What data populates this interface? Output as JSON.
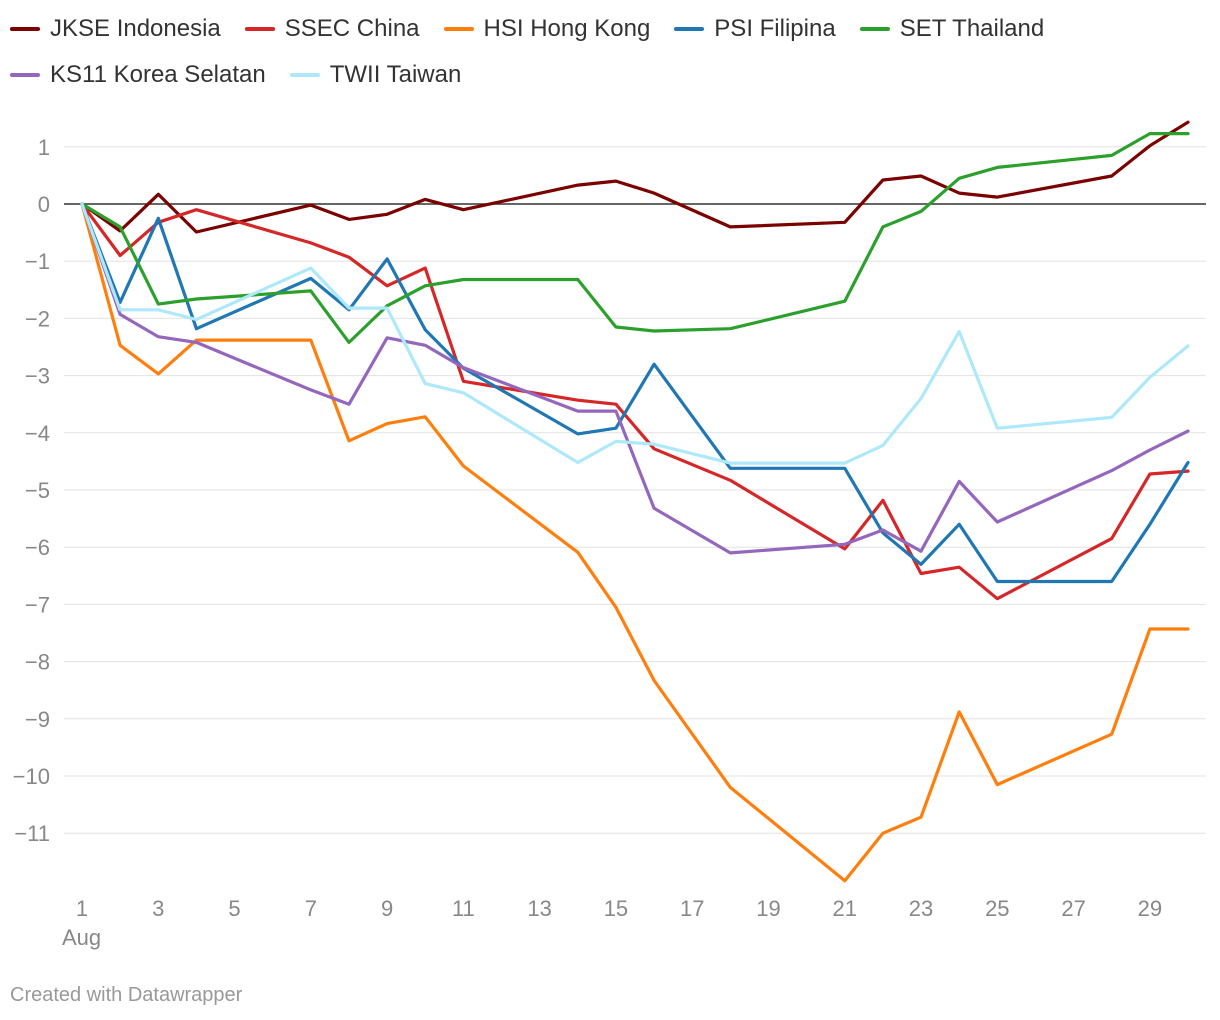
{
  "chart_data": {
    "type": "line",
    "title": "",
    "xlabel": "",
    "ylabel": "",
    "x": [
      1,
      2,
      3,
      4,
      7,
      8,
      9,
      10,
      11,
      14,
      15,
      16,
      18,
      21,
      22,
      23,
      24,
      25,
      28,
      29,
      30
    ],
    "xlim": [
      1,
      30
    ],
    "ylim": [
      -12,
      1.5
    ],
    "x_ticks": [
      {
        "value": 1,
        "label": "1",
        "sublabel": "Aug"
      },
      {
        "value": 3,
        "label": "3"
      },
      {
        "value": 5,
        "label": "5"
      },
      {
        "value": 7,
        "label": "7"
      },
      {
        "value": 9,
        "label": "9"
      },
      {
        "value": 11,
        "label": "11"
      },
      {
        "value": 13,
        "label": "13"
      },
      {
        "value": 15,
        "label": "15"
      },
      {
        "value": 17,
        "label": "17"
      },
      {
        "value": 19,
        "label": "19"
      },
      {
        "value": 21,
        "label": "21"
      },
      {
        "value": 23,
        "label": "23"
      },
      {
        "value": 25,
        "label": "25"
      },
      {
        "value": 27,
        "label": "27"
      },
      {
        "value": 29,
        "label": "29"
      }
    ],
    "y_ticks": [
      {
        "value": 1,
        "label": "1"
      },
      {
        "value": 0,
        "label": "0"
      },
      {
        "value": -1,
        "label": "−1"
      },
      {
        "value": -2,
        "label": "−2"
      },
      {
        "value": -3,
        "label": "−3"
      },
      {
        "value": -4,
        "label": "−4"
      },
      {
        "value": -5,
        "label": "−5"
      },
      {
        "value": -6,
        "label": "−6"
      },
      {
        "value": -7,
        "label": "−7"
      },
      {
        "value": -8,
        "label": "−8"
      },
      {
        "value": -9,
        "label": "−9"
      },
      {
        "value": -10,
        "label": "−10"
      },
      {
        "value": -11,
        "label": "−11"
      }
    ],
    "grid": true,
    "legend_position": "top-left",
    "series": [
      {
        "name": "JKSE Indonesia",
        "color": "#7b0000",
        "values": [
          0,
          -0.47,
          0.17,
          -0.49,
          -0.02,
          -0.27,
          -0.18,
          0.08,
          -0.1,
          0.33,
          0.4,
          0.19,
          -0.4,
          -0.32,
          0.42,
          0.49,
          0.19,
          0.12,
          0.49,
          1.02,
          1.43
        ]
      },
      {
        "name": "SSEC China",
        "color": "#d62728",
        "values": [
          0,
          -0.9,
          -0.32,
          -0.1,
          -0.68,
          -0.93,
          -1.43,
          -1.12,
          -3.1,
          -3.43,
          -3.5,
          -4.28,
          -4.83,
          -6.03,
          -5.18,
          -6.46,
          -6.35,
          -6.9,
          -5.85,
          -4.72,
          -4.67
        ]
      },
      {
        "name": "HSI Hong Kong",
        "color": "#ff7f0e",
        "values": [
          0,
          -2.47,
          -2.97,
          -2.38,
          -2.38,
          -4.14,
          -3.84,
          -3.72,
          -4.58,
          -6.09,
          -7.05,
          -8.33,
          -10.2,
          -11.83,
          -11,
          -10.72,
          -8.88,
          -10.15,
          -9.27,
          -7.43,
          -7.43
        ]
      },
      {
        "name": "PSI Filipina",
        "color": "#1f77b4",
        "values": [
          0,
          -1.72,
          -0.25,
          -2.18,
          -1.3,
          -1.85,
          -0.96,
          -2.2,
          -2.87,
          -4.02,
          -3.92,
          -2.8,
          -4.62,
          -4.62,
          -5.75,
          -6.3,
          -5.6,
          -6.6,
          -6.6,
          -5.6,
          -4.52
        ]
      },
      {
        "name": "SET Thailand",
        "color": "#2ca02c",
        "values": [
          0,
          -0.4,
          -1.75,
          -1.66,
          -1.52,
          -2.42,
          -1.78,
          -1.43,
          -1.32,
          -1.32,
          -2.15,
          -2.22,
          -2.18,
          -1.7,
          -0.4,
          -0.13,
          0.45,
          0.64,
          0.85,
          1.23,
          1.23
        ]
      },
      {
        "name": "KS11 Korea Selatan",
        "color": "#9467bd",
        "values": [
          0,
          -1.93,
          -2.32,
          -2.42,
          -3.25,
          -3.5,
          -2.34,
          -2.47,
          -2.86,
          -3.62,
          -3.62,
          -5.32,
          -6.1,
          -5.95,
          -5.7,
          -6.07,
          -4.85,
          -5.56,
          -4.66,
          -4.3,
          -3.97
        ]
      },
      {
        "name": "TWII Taiwan",
        "color": "#aee8fb",
        "values": [
          0,
          -1.85,
          -1.85,
          -2.02,
          -1.12,
          -1.82,
          -1.82,
          -3.14,
          -3.3,
          -4.52,
          -4.15,
          -4.2,
          -4.53,
          -4.53,
          -4.22,
          -3.4,
          -2.23,
          -3.92,
          -3.73,
          -3.03,
          -2.48
        ]
      }
    ]
  },
  "footer": {
    "credit": "Created with Datawrapper"
  }
}
